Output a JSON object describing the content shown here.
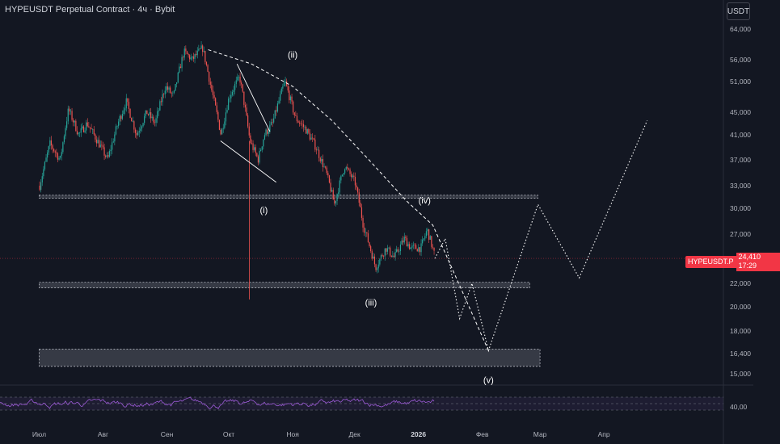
{
  "header": {
    "title": "HYPEUSDT Perpetual Contract · 4ч · Bybit",
    "currency_button": "USDT"
  },
  "price_badge": {
    "symbol": "HYPEUSDT.P",
    "price": "24,410",
    "countdown": "17:29"
  },
  "colors": {
    "background": "#131722",
    "up": "#26a69a",
    "down": "#ef5350",
    "rsi_line": "#9c5ad6",
    "annotation": "#ffffff",
    "zone": "#787b86",
    "last_price": "#f23645"
  },
  "chart_data": {
    "type": "candlestick",
    "price_axis_labels": [
      "64,000",
      "56,000",
      "51,000",
      "45,000",
      "41,000",
      "37,000",
      "33,000",
      "30,000",
      "27,000",
      "22,000",
      "20,000",
      "18,000",
      "16,400",
      "15,000"
    ],
    "time_axis_labels": [
      "Июл",
      "Авг",
      "Сен",
      "Окт",
      "Ноя",
      "Дек",
      "2026",
      "Фев",
      "Мар",
      "Апр"
    ],
    "wave_labels": [
      "(i)",
      "(ii)",
      "(iii)",
      "(iv)",
      "(v)"
    ],
    "rsi_axis_label": "40,00",
    "last_price": 24.41,
    "candle_path": [
      [
        "2025-07-01",
        33
      ],
      [
        "2025-07-06",
        39.5
      ],
      [
        "2025-07-11",
        37
      ],
      [
        "2025-07-15",
        45.5
      ],
      [
        "2025-07-20",
        41
      ],
      [
        "2025-07-24",
        43
      ],
      [
        "2025-08-03",
        37
      ],
      [
        "2025-08-08",
        43
      ],
      [
        "2025-08-12",
        47
      ],
      [
        "2025-08-17",
        41
      ],
      [
        "2025-08-22",
        45
      ],
      [
        "2025-08-26",
        43
      ],
      [
        "2025-08-31",
        50
      ],
      [
        "2025-09-04",
        48
      ],
      [
        "2025-09-09",
        58
      ],
      [
        "2025-09-13",
        56
      ],
      [
        "2025-09-18",
        59
      ],
      [
        "2025-09-22",
        50
      ],
      [
        "2025-09-27",
        41
      ],
      [
        "2025-10-01",
        48
      ],
      [
        "2025-10-06",
        52
      ],
      [
        "2025-10-11",
        40
      ],
      [
        "2025-10-15",
        37
      ],
      [
        "2025-10-18",
        41
      ],
      [
        "2025-10-22",
        43
      ],
      [
        "2025-10-28",
        51
      ],
      [
        "2025-11-02",
        44
      ],
      [
        "2025-11-07",
        42
      ],
      [
        "2025-11-12",
        39
      ],
      [
        "2025-11-17",
        35
      ],
      [
        "2025-11-21",
        30.5
      ],
      [
        "2025-11-26",
        36
      ],
      [
        "2025-12-01",
        33.5
      ],
      [
        "2025-12-05",
        28
      ],
      [
        "2025-12-11",
        23.5
      ],
      [
        "2025-12-16",
        25.5
      ],
      [
        "2025-12-20",
        24.5
      ],
      [
        "2025-12-25",
        26.5
      ],
      [
        "2025-12-28",
        25.5
      ],
      [
        "2026-01-02",
        25.5
      ],
      [
        "2026-01-05",
        27.5
      ],
      [
        "2026-01-09",
        24.4
      ]
    ],
    "horizontal_zones": [
      {
        "from": "2025-07-01",
        "to": "2026-02-28",
        "low": 31.3,
        "high": 31.7
      },
      {
        "from": "2025-07-01",
        "to": "2026-02-24",
        "low": 21.6,
        "high": 22.1
      },
      {
        "from": "2025-07-01",
        "to": "2026-03-01",
        "low": 15.5,
        "high": 16.7
      }
    ],
    "projection_path": [
      [
        "2026-01-09",
        24.4
      ],
      [
        "2026-01-14",
        26.5
      ],
      [
        "2026-01-21",
        19
      ],
      [
        "2026-01-27",
        22
      ],
      [
        "2026-02-04",
        16.6
      ],
      [
        "2026-02-28",
        30.5
      ],
      [
        "2026-03-20",
        22.5
      ],
      [
        "2026-04-22",
        43.5
      ]
    ],
    "rsi": {
      "levels": [
        70,
        50,
        30
      ],
      "range": [
        0,
        100
      ]
    }
  }
}
